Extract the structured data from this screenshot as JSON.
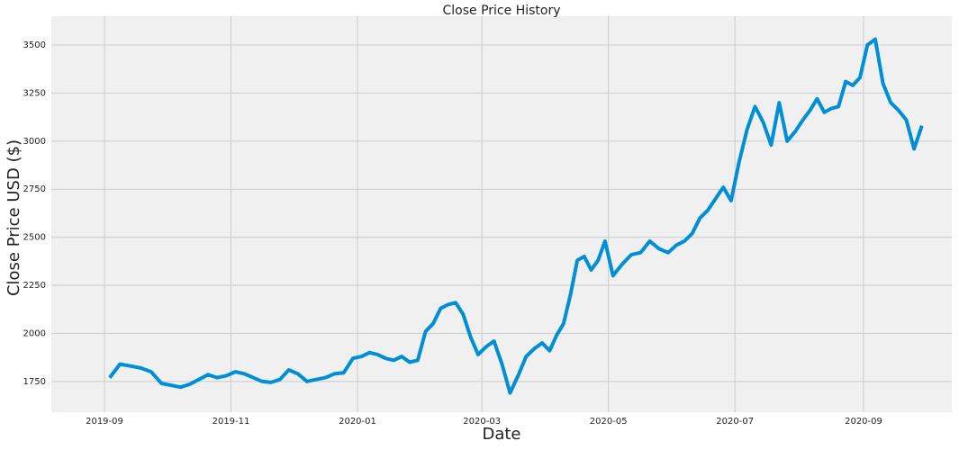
{
  "chart_data": {
    "type": "line",
    "title": "Close Price History",
    "x_label": "Date",
    "y_label": "Close Price USD ($)",
    "x": [
      "2019-09",
      "2019-09",
      "2019-09",
      "2019-09",
      "2019-09",
      "2019-09",
      "2019-10",
      "2019-10",
      "2019-10",
      "2019-10",
      "2019-10",
      "2019-10",
      "2019-10",
      "2019-11",
      "2019-11",
      "2019-11",
      "2019-11",
      "2019-11",
      "2019-11",
      "2019-11",
      "2019-12",
      "2019-12",
      "2019-12",
      "2019-12",
      "2019-12",
      "2019-12",
      "2019-12",
      "2020-01",
      "2020-01",
      "2020-01",
      "2020-01",
      "2020-01",
      "2020-01",
      "2020-01",
      "2020-01",
      "2020-02",
      "2020-02",
      "2020-02",
      "2020-02",
      "2020-02",
      "2020-02",
      "2020-02",
      "2020-02",
      "2020-03",
      "2020-03",
      "2020-03",
      "2020-03",
      "2020-03",
      "2020-03",
      "2020-03",
      "2020-03",
      "2020-04",
      "2020-04",
      "2020-04",
      "2020-04",
      "2020-04",
      "2020-04",
      "2020-04",
      "2020-04",
      "2020-04",
      "2020-05",
      "2020-05",
      "2020-05",
      "2020-05",
      "2020-05",
      "2020-05",
      "2020-05",
      "2020-06",
      "2020-06",
      "2020-06",
      "2020-06",
      "2020-06",
      "2020-06",
      "2020-06",
      "2020-06",
      "2020-07",
      "2020-07",
      "2020-07",
      "2020-07",
      "2020-07",
      "2020-07",
      "2020-07",
      "2020-07",
      "2020-08",
      "2020-08",
      "2020-08",
      "2020-08",
      "2020-08",
      "2020-08",
      "2020-08",
      "2020-08",
      "2020-08",
      "2020-09",
      "2020-09",
      "2020-09",
      "2020-09",
      "2020-09",
      "2020-09",
      "2020-09",
      "2020-09"
    ],
    "values": [
      1770,
      1840,
      1830,
      1820,
      1800,
      1740,
      1730,
      1720,
      1735,
      1760,
      1785,
      1770,
      1780,
      1800,
      1790,
      1770,
      1750,
      1745,
      1760,
      1810,
      1790,
      1750,
      1760,
      1770,
      1790,
      1795,
      1870,
      1880,
      1900,
      1890,
      1870,
      1860,
      1880,
      1850,
      1860,
      2010,
      2050,
      2130,
      2150,
      2160,
      2100,
      1980,
      1890,
      1930,
      1960,
      1840,
      1690,
      1780,
      1880,
      1920,
      1950,
      1910,
      1990,
      2050,
      2200,
      2380,
      2400,
      2330,
      2380,
      2480,
      2300,
      2360,
      2410,
      2420,
      2480,
      2440,
      2420,
      2460,
      2480,
      2520,
      2600,
      2640,
      2700,
      2760,
      2690,
      2890,
      3060,
      3180,
      3100,
      2980,
      3200,
      3000,
      3050,
      3110,
      3160,
      3220,
      3150,
      3170,
      3180,
      3310,
      3290,
      3330,
      3500,
      3530,
      3300,
      3200,
      3160,
      3110,
      2960,
      3080
    ],
    "color": "#008fd5",
    "xticks": [
      "2019-09",
      "2019-11",
      "2020-01",
      "2020-03",
      "2020-05",
      "2020-07",
      "2020-09"
    ],
    "ylim": [
      1590,
      3650
    ],
    "yticks": [
      1750,
      2000,
      2250,
      2500,
      2750,
      3000,
      3250,
      3500
    ],
    "grid": true
  }
}
